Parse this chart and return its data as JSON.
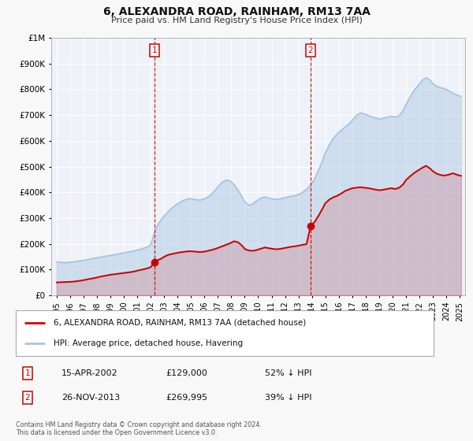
{
  "title": "6, ALEXANDRA ROAD, RAINHAM, RM13 7AA",
  "subtitle": "Price paid vs. HM Land Registry's House Price Index (HPI)",
  "hpi_label": "HPI: Average price, detached house, Havering",
  "property_label": "6, ALEXANDRA ROAD, RAINHAM, RM13 7AA (detached house)",
  "hpi_color": "#a8c4e0",
  "property_color": "#cc0000",
  "bg_color": "#f8f8f8",
  "plot_bg": "#eef2f8",
  "grid_color": "#ffffff",
  "sale1_date": "15-APR-2002",
  "sale1_price": 129000,
  "sale1_pct": "52% ↓ HPI",
  "sale1_x": 2002.29,
  "sale2_date": "26-NOV-2013",
  "sale2_price": 269995,
  "sale2_pct": "39% ↓ HPI",
  "sale2_x": 2013.9,
  "ylim": [
    0,
    1000000
  ],
  "yticks": [
    0,
    100000,
    200000,
    300000,
    400000,
    500000,
    600000,
    700000,
    800000,
    900000,
    1000000
  ],
  "ytick_labels": [
    "£0",
    "£100K",
    "£200K",
    "£300K",
    "£400K",
    "£500K",
    "£600K",
    "£700K",
    "£800K",
    "£900K",
    "£1M"
  ],
  "xlim_start": 1994.6,
  "xlim_end": 2025.4,
  "xticks": [
    1995,
    1996,
    1997,
    1998,
    1999,
    2000,
    2001,
    2002,
    2003,
    2004,
    2005,
    2006,
    2007,
    2008,
    2009,
    2010,
    2011,
    2012,
    2013,
    2014,
    2015,
    2016,
    2017,
    2018,
    2019,
    2020,
    2021,
    2022,
    2023,
    2024,
    2025
  ],
  "footnote": "Contains HM Land Registry data © Crown copyright and database right 2024.\nThis data is licensed under the Open Government Licence v3.0.",
  "hpi_data": [
    [
      1995.0,
      130000
    ],
    [
      1995.3,
      128000
    ],
    [
      1995.6,
      127000
    ],
    [
      1995.9,
      128000
    ],
    [
      1996.2,
      130000
    ],
    [
      1996.5,
      132000
    ],
    [
      1996.8,
      134000
    ],
    [
      1997.0,
      136000
    ],
    [
      1997.3,
      139000
    ],
    [
      1997.6,
      142000
    ],
    [
      1997.9,
      145000
    ],
    [
      1998.2,
      148000
    ],
    [
      1998.5,
      151000
    ],
    [
      1998.8,
      153000
    ],
    [
      1999.0,
      155000
    ],
    [
      1999.3,
      158000
    ],
    [
      1999.6,
      161000
    ],
    [
      1999.9,
      164000
    ],
    [
      2000.2,
      167000
    ],
    [
      2000.5,
      170000
    ],
    [
      2000.8,
      173000
    ],
    [
      2001.0,
      176000
    ],
    [
      2001.3,
      180000
    ],
    [
      2001.6,
      185000
    ],
    [
      2001.9,
      192000
    ],
    [
      2002.0,
      198000
    ],
    [
      2002.2,
      230000
    ],
    [
      2002.4,
      260000
    ],
    [
      2002.6,
      280000
    ],
    [
      2002.8,
      295000
    ],
    [
      2003.0,
      308000
    ],
    [
      2003.3,
      325000
    ],
    [
      2003.6,
      340000
    ],
    [
      2003.9,
      352000
    ],
    [
      2004.2,
      362000
    ],
    [
      2004.5,
      370000
    ],
    [
      2004.8,
      375000
    ],
    [
      2005.0,
      375000
    ],
    [
      2005.3,
      372000
    ],
    [
      2005.6,
      370000
    ],
    [
      2005.9,
      373000
    ],
    [
      2006.2,
      380000
    ],
    [
      2006.5,
      392000
    ],
    [
      2006.8,
      408000
    ],
    [
      2007.0,
      422000
    ],
    [
      2007.3,
      438000
    ],
    [
      2007.6,
      448000
    ],
    [
      2007.9,
      445000
    ],
    [
      2008.2,
      430000
    ],
    [
      2008.5,
      408000
    ],
    [
      2008.8,
      382000
    ],
    [
      2009.0,
      362000
    ],
    [
      2009.3,
      350000
    ],
    [
      2009.6,
      355000
    ],
    [
      2009.9,
      368000
    ],
    [
      2010.2,
      378000
    ],
    [
      2010.5,
      382000
    ],
    [
      2010.8,
      378000
    ],
    [
      2011.0,
      375000
    ],
    [
      2011.3,
      373000
    ],
    [
      2011.6,
      374000
    ],
    [
      2011.9,
      378000
    ],
    [
      2012.2,
      382000
    ],
    [
      2012.5,
      385000
    ],
    [
      2012.8,
      388000
    ],
    [
      2013.0,
      392000
    ],
    [
      2013.3,
      400000
    ],
    [
      2013.6,
      412000
    ],
    [
      2013.9,
      428000
    ],
    [
      2014.2,
      452000
    ],
    [
      2014.5,
      488000
    ],
    [
      2014.8,
      525000
    ],
    [
      2015.0,
      555000
    ],
    [
      2015.3,
      585000
    ],
    [
      2015.6,
      610000
    ],
    [
      2015.9,
      628000
    ],
    [
      2016.2,
      642000
    ],
    [
      2016.5,
      655000
    ],
    [
      2016.8,
      668000
    ],
    [
      2017.0,
      680000
    ],
    [
      2017.3,
      698000
    ],
    [
      2017.6,
      708000
    ],
    [
      2017.9,
      705000
    ],
    [
      2018.2,
      698000
    ],
    [
      2018.5,
      692000
    ],
    [
      2018.8,
      688000
    ],
    [
      2019.0,
      685000
    ],
    [
      2019.3,
      688000
    ],
    [
      2019.6,
      692000
    ],
    [
      2019.9,
      696000
    ],
    [
      2020.2,
      692000
    ],
    [
      2020.5,
      698000
    ],
    [
      2020.8,
      718000
    ],
    [
      2021.0,
      742000
    ],
    [
      2021.3,
      770000
    ],
    [
      2021.6,
      796000
    ],
    [
      2021.9,
      815000
    ],
    [
      2022.2,
      835000
    ],
    [
      2022.5,
      845000
    ],
    [
      2022.8,
      835000
    ],
    [
      2023.0,
      822000
    ],
    [
      2023.3,
      812000
    ],
    [
      2023.6,
      806000
    ],
    [
      2023.9,
      802000
    ],
    [
      2024.2,
      794000
    ],
    [
      2024.5,
      785000
    ],
    [
      2024.8,
      778000
    ],
    [
      2025.1,
      772000
    ]
  ],
  "property_data": [
    [
      1995.0,
      50000
    ],
    [
      1995.3,
      51000
    ],
    [
      1995.6,
      51500
    ],
    [
      1995.9,
      52000
    ],
    [
      1996.2,
      53000
    ],
    [
      1996.5,
      55000
    ],
    [
      1996.8,
      57000
    ],
    [
      1997.0,
      59000
    ],
    [
      1997.3,
      62000
    ],
    [
      1997.6,
      65000
    ],
    [
      1997.9,
      68000
    ],
    [
      1998.2,
      72000
    ],
    [
      1998.5,
      75000
    ],
    [
      1998.8,
      78000
    ],
    [
      1999.0,
      80000
    ],
    [
      1999.3,
      82000
    ],
    [
      1999.6,
      84000
    ],
    [
      1999.9,
      86000
    ],
    [
      2000.2,
      88000
    ],
    [
      2000.5,
      90000
    ],
    [
      2000.8,
      93000
    ],
    [
      2001.0,
      96000
    ],
    [
      2001.3,
      99000
    ],
    [
      2001.6,
      103000
    ],
    [
      2001.9,
      107000
    ],
    [
      2002.0,
      110000
    ],
    [
      2002.29,
      129000
    ],
    [
      2002.5,
      136000
    ],
    [
      2002.8,
      143000
    ],
    [
      2003.0,
      150000
    ],
    [
      2003.3,
      157000
    ],
    [
      2003.6,
      161000
    ],
    [
      2003.9,
      164000
    ],
    [
      2004.2,
      167000
    ],
    [
      2004.5,
      169000
    ],
    [
      2004.8,
      171000
    ],
    [
      2005.0,
      171000
    ],
    [
      2005.3,
      170000
    ],
    [
      2005.6,
      168000
    ],
    [
      2005.9,
      169000
    ],
    [
      2006.2,
      172000
    ],
    [
      2006.5,
      176000
    ],
    [
      2006.8,
      180000
    ],
    [
      2007.0,
      184000
    ],
    [
      2007.3,
      190000
    ],
    [
      2007.6,
      196000
    ],
    [
      2007.9,
      202000
    ],
    [
      2008.2,
      210000
    ],
    [
      2008.5,
      206000
    ],
    [
      2008.8,
      193000
    ],
    [
      2009.0,
      180000
    ],
    [
      2009.3,
      174000
    ],
    [
      2009.6,
      173000
    ],
    [
      2009.9,
      176000
    ],
    [
      2010.2,
      181000
    ],
    [
      2010.5,
      186000
    ],
    [
      2010.8,
      183000
    ],
    [
      2011.0,
      181000
    ],
    [
      2011.3,
      179000
    ],
    [
      2011.6,
      180000
    ],
    [
      2011.9,
      183000
    ],
    [
      2012.2,
      186000
    ],
    [
      2012.5,
      189000
    ],
    [
      2012.8,
      191000
    ],
    [
      2013.0,
      193000
    ],
    [
      2013.3,
      196000
    ],
    [
      2013.6,
      199000
    ],
    [
      2013.9,
      269995
    ],
    [
      2014.2,
      285000
    ],
    [
      2014.5,
      310000
    ],
    [
      2014.8,
      338000
    ],
    [
      2015.0,
      358000
    ],
    [
      2015.3,
      372000
    ],
    [
      2015.6,
      381000
    ],
    [
      2015.9,
      387000
    ],
    [
      2016.2,
      396000
    ],
    [
      2016.5,
      406000
    ],
    [
      2016.8,
      412000
    ],
    [
      2017.0,
      416000
    ],
    [
      2017.3,
      418000
    ],
    [
      2017.6,
      420000
    ],
    [
      2017.9,
      418000
    ],
    [
      2018.2,
      416000
    ],
    [
      2018.5,
      413000
    ],
    [
      2018.8,
      410000
    ],
    [
      2019.0,
      408000
    ],
    [
      2019.3,
      410000
    ],
    [
      2019.6,
      413000
    ],
    [
      2019.9,
      416000
    ],
    [
      2020.2,
      413000
    ],
    [
      2020.5,
      418000
    ],
    [
      2020.8,
      432000
    ],
    [
      2021.0,
      448000
    ],
    [
      2021.3,
      462000
    ],
    [
      2021.6,
      475000
    ],
    [
      2021.9,
      485000
    ],
    [
      2022.2,
      495000
    ],
    [
      2022.5,
      503000
    ],
    [
      2022.8,
      492000
    ],
    [
      2023.0,
      482000
    ],
    [
      2023.3,
      472000
    ],
    [
      2023.6,
      467000
    ],
    [
      2023.9,
      465000
    ],
    [
      2024.2,
      469000
    ],
    [
      2024.5,
      474000
    ],
    [
      2024.8,
      468000
    ],
    [
      2025.1,
      464000
    ]
  ]
}
